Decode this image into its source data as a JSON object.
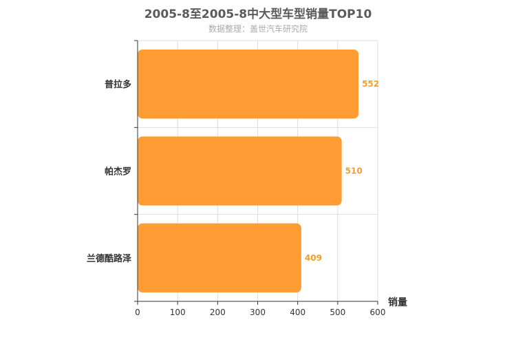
{
  "chart_data": {
    "type": "bar",
    "orientation": "horizontal",
    "title": "2005-8至2005-8中大型车型销量TOP10",
    "subtitle": "数据整理：盖世汽车研究院",
    "categories": [
      "普拉多",
      "帕杰罗",
      "兰德酷路泽"
    ],
    "values": [
      552,
      510,
      409
    ],
    "xlabel": "销量",
    "ylabel": "",
    "xlim": [
      0,
      600
    ],
    "xticks": [
      0,
      100,
      200,
      300,
      400,
      500,
      600
    ],
    "grid": true,
    "legend": "none",
    "bar_color": "#ff9c33",
    "label_color": "#f0a030"
  }
}
